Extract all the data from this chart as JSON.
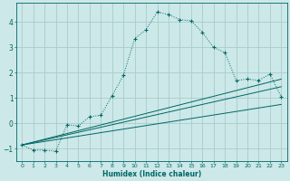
{
  "title": "",
  "xlabel": "Humidex (Indice chaleur)",
  "bg_color": "#cce8e8",
  "grid_color": "#aacccc",
  "line_color": "#006666",
  "xlim": [
    -0.5,
    23.5
  ],
  "ylim": [
    -1.5,
    4.75
  ],
  "yticks": [
    -1,
    0,
    1,
    2,
    3,
    4
  ],
  "xticks": [
    0,
    1,
    2,
    3,
    4,
    5,
    6,
    7,
    8,
    9,
    10,
    11,
    12,
    13,
    14,
    15,
    16,
    17,
    18,
    19,
    20,
    21,
    22,
    23
  ],
  "curve1_x": [
    0,
    1,
    2,
    3,
    4,
    5,
    6,
    7,
    8,
    9,
    10,
    11,
    12,
    13,
    14,
    15,
    16,
    17,
    18,
    19,
    20,
    21,
    22,
    23
  ],
  "curve1_y": [
    -0.85,
    -1.05,
    -1.05,
    -1.1,
    -0.05,
    -0.1,
    0.27,
    0.32,
    1.1,
    1.9,
    3.35,
    3.7,
    4.4,
    4.3,
    4.1,
    4.05,
    3.6,
    3.0,
    2.8,
    1.7,
    1.75,
    1.7,
    1.95,
    1.05
  ],
  "line1_x": [
    0,
    23
  ],
  "line1_y": [
    -0.85,
    0.75
  ],
  "line2_x": [
    0,
    23
  ],
  "line2_y": [
    -0.85,
    1.45
  ],
  "line3_x": [
    0,
    23
  ],
  "line3_y": [
    -0.85,
    1.75
  ],
  "xlabel_fontsize": 5.5,
  "tick_fontsize": 4.5,
  "ytick_fontsize": 5.5
}
